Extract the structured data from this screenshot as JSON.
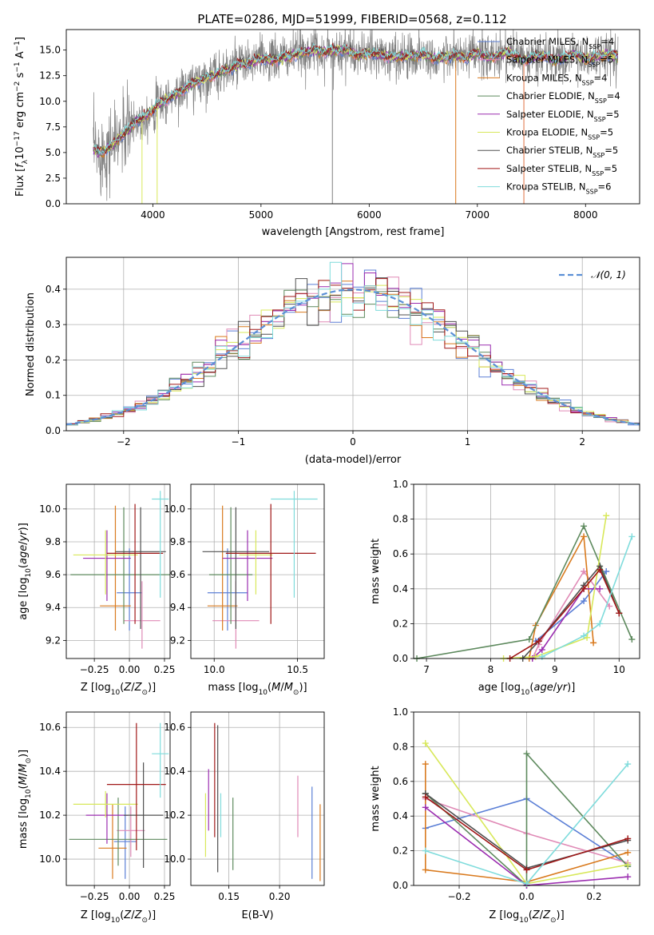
{
  "colors": {
    "chabrier_miles": "#5b7fd6",
    "salpeter_miles": "#e08ab6",
    "kroupa_miles": "#d97a1e",
    "chabrier_elodie": "#5e8a5e",
    "salpeter_elodie": "#9b2db0",
    "kroupa_elodie": "#d8e85a",
    "chabrier_stelib": "#505050",
    "salpeter_stelib": "#a01818",
    "kroupa_stelib": "#7fdcdc",
    "gauss": "#5b8fd6",
    "grid": "#b0b0b0"
  },
  "chart_data": [
    {
      "id": "spectrum",
      "type": "line",
      "title": "PLATE=0286, MJD=51999, FIBERID=0568, z=0.112",
      "xlabel": "wavelength [Angstrom, rest frame]",
      "ylabel": "Flux [f_λ 10^-17 erg cm^-2 s^-1 A^-1]",
      "xlim": [
        3200,
        8500
      ],
      "ylim": [
        0,
        17
      ],
      "xticks": [
        "4000",
        "5000",
        "6000",
        "7000",
        "8000"
      ],
      "yticks": [
        "0.0",
        "2.5",
        "5.0",
        "7.5",
        "10.0",
        "12.5",
        "15.0"
      ],
      "grid": false,
      "legend_position": "top-right",
      "legend": [
        {
          "label": "Chabrier MILES, N",
          "sub": "SSP",
          "tail": "=4",
          "key": "chabrier_miles"
        },
        {
          "label": "Salpeter MILES, N",
          "sub": "SSP",
          "tail": "=5",
          "key": "salpeter_miles"
        },
        {
          "label": "Kroupa MILES, N",
          "sub": "SSP",
          "tail": "=4",
          "key": "kroupa_miles"
        },
        {
          "label": "Chabrier ELODIE, N",
          "sub": "SSP",
          "tail": "=4",
          "key": "chabrier_elodie"
        },
        {
          "label": "Salpeter ELODIE, N",
          "sub": "SSP",
          "tail": "=5",
          "key": "salpeter_elodie"
        },
        {
          "label": "Kroupa ELODIE, N",
          "sub": "SSP",
          "tail": "=5",
          "key": "kroupa_elodie"
        },
        {
          "label": "Chabrier STELIB, N",
          "sub": "SSP",
          "tail": "=5",
          "key": "chabrier_stelib"
        },
        {
          "label": "Salpeter STELIB, N",
          "sub": "SSP",
          "tail": "=5",
          "key": "salpeter_stelib"
        },
        {
          "label": "Kroupa STELIB, N",
          "sub": "SSP",
          "tail": "=6",
          "key": "kroupa_stelib"
        }
      ],
      "model_curve": {
        "x": [
          3450,
          3500,
          3550,
          3600,
          3650,
          3700,
          3750,
          3800,
          3850,
          3900,
          3950,
          4000,
          4100,
          4200,
          4300,
          4400,
          4500,
          4600,
          4700,
          4800,
          4900,
          5000,
          5100,
          5200,
          5300,
          5400,
          5500,
          5600,
          5700,
          5800,
          5900,
          6000,
          6100,
          6200,
          6300,
          6400,
          6500,
          6600,
          6700,
          6800,
          6900,
          7000,
          7100,
          7200,
          7300,
          7400,
          7500,
          7600,
          7700,
          7800,
          7900,
          8000,
          8100,
          8200,
          8300
        ],
        "y": [
          5.3,
          5.0,
          5.2,
          5.5,
          6.0,
          6.6,
          7.0,
          7.5,
          8.2,
          8.2,
          8.8,
          9.2,
          10.0,
          10.6,
          11.3,
          11.9,
          12.3,
          12.7,
          13.1,
          13.6,
          13.7,
          14.2,
          14.0,
          14.3,
          14.5,
          14.8,
          15.0,
          14.8,
          15.0,
          15.0,
          14.4,
          14.7,
          14.5,
          14.3,
          14.4,
          14.4,
          14.6,
          14.2,
          14.3,
          14.5,
          14.2,
          14.7,
          14.2,
          14.6,
          14.8,
          14.0,
          14.2,
          14.5,
          14.0,
          14.2,
          14.6,
          14.1,
          14.3,
          14.6,
          14.4
        ]
      },
      "data_noise": 1.1,
      "spikes_x": [
        3900,
        4040,
        5660,
        6800,
        7430
      ]
    },
    {
      "id": "residuals",
      "type": "histogram",
      "xlabel": "(data-model)/error",
      "ylabel": "Normed distribution",
      "xlim": [
        -2.5,
        2.5
      ],
      "ylim": [
        0,
        0.49
      ],
      "xticks": [
        "−2",
        "−1",
        "0",
        "1",
        "2"
      ],
      "yticks": [
        "0.0",
        "0.1",
        "0.2",
        "0.3",
        "0.4"
      ],
      "grid": true,
      "legend_position": "top-right",
      "gauss_label": "𝒩(0, 1)",
      "bin_width": 0.1
    },
    {
      "id": "age_vs_z",
      "type": "errorbar",
      "xlabel": "Z [log10(Z/Z⊙)]",
      "ylabel": "age [log10(age/yr)]",
      "xlim": [
        -0.45,
        0.29
      ],
      "ylim": [
        9.09,
        10.15
      ],
      "xticks": [
        "−0.25",
        "0.00",
        "0.25"
      ],
      "yticks": [
        "9.2",
        "9.4",
        "9.6",
        "9.8",
        "10.0"
      ],
      "points": [
        {
          "key": "chabrier_miles",
          "x": 0.0,
          "xerr": 0.09,
          "y": 9.49,
          "yerr": [
            0.23,
            0.27
          ]
        },
        {
          "key": "salpeter_miles",
          "x": 0.09,
          "xerr": 0.13,
          "y": 9.32,
          "yerr": [
            0.17,
            0.24
          ]
        },
        {
          "key": "kroupa_miles",
          "x": -0.1,
          "xerr": 0.11,
          "y": 9.41,
          "yerr": [
            0.15,
            0.61
          ]
        },
        {
          "key": "chabrier_elodie",
          "x": -0.04,
          "xerr": 0.38,
          "y": 9.6,
          "yerr": [
            0.3,
            0.41
          ]
        },
        {
          "key": "salpeter_elodie",
          "x": -0.16,
          "xerr": 0.17,
          "y": 9.7,
          "yerr": [
            0.26,
            0.17
          ]
        },
        {
          "key": "kroupa_elodie",
          "x": -0.17,
          "xerr": 0.23,
          "y": 9.72,
          "yerr": [
            0.24,
            0.15
          ]
        },
        {
          "key": "chabrier_stelib",
          "x": 0.08,
          "xerr": 0.18,
          "y": 9.74,
          "yerr": [
            0.47,
            0.27
          ]
        },
        {
          "key": "salpeter_stelib",
          "x": 0.04,
          "xerr": 0.2,
          "y": 9.73,
          "yerr": [
            0.43,
            0.3
          ]
        },
        {
          "key": "kroupa_stelib",
          "x": 0.22,
          "xerr": 0.06,
          "y": 10.06,
          "yerr": [
            0.6,
            0.05
          ]
        }
      ]
    },
    {
      "id": "age_vs_mass",
      "type": "errorbar",
      "xlabel": "mass [log10(M/M⊙)]",
      "ylabel": "",
      "xlim": [
        9.86,
        10.66
      ],
      "ylim": [
        9.09,
        10.15
      ],
      "xticks": [
        "10.0",
        "10.5"
      ],
      "yticks": [
        "9.2",
        "9.4",
        "9.6",
        "9.8",
        "10.0"
      ],
      "points": [
        {
          "key": "chabrier_miles",
          "x": 10.08,
          "xerr": 0.12,
          "y": 9.49,
          "yerr": [
            0.23,
            0.27
          ]
        },
        {
          "key": "salpeter_miles",
          "x": 10.13,
          "xerr": 0.14,
          "y": 9.32,
          "yerr": [
            0.17,
            0.24
          ]
        },
        {
          "key": "kroupa_miles",
          "x": 10.05,
          "xerr": 0.09,
          "y": 9.41,
          "yerr": [
            0.15,
            0.61
          ]
        },
        {
          "key": "chabrier_elodie",
          "x": 10.1,
          "xerr": 0.13,
          "y": 9.6,
          "yerr": [
            0.3,
            0.41
          ]
        },
        {
          "key": "salpeter_elodie",
          "x": 10.2,
          "xerr": 0.15,
          "y": 9.7,
          "yerr": [
            0.26,
            0.17
          ]
        },
        {
          "key": "kroupa_elodie",
          "x": 10.25,
          "xerr": 0.1,
          "y": 9.72,
          "yerr": [
            0.24,
            0.15
          ]
        },
        {
          "key": "chabrier_stelib",
          "x": 10.13,
          "xerr": 0.2,
          "y": 9.74,
          "yerr": [
            0.47,
            0.27
          ]
        },
        {
          "key": "salpeter_stelib",
          "x": 10.34,
          "xerr": 0.27,
          "y": 9.73,
          "yerr": [
            0.43,
            0.3
          ]
        },
        {
          "key": "kroupa_stelib",
          "x": 10.48,
          "xerr": 0.14,
          "y": 10.06,
          "yerr": [
            0.6,
            0.05
          ]
        }
      ]
    },
    {
      "id": "weight_vs_age",
      "type": "line",
      "xlabel": "age [log10(age/yr)]",
      "ylabel": "mass weight",
      "xlim": [
        6.8,
        10.32
      ],
      "ylim": [
        0,
        1
      ],
      "xticks": [
        "7",
        "8",
        "9",
        "10"
      ],
      "yticks": [
        "0.0",
        "0.2",
        "0.4",
        "0.6",
        "0.8",
        "1.0"
      ],
      "grid": true,
      "series": [
        {
          "key": "chabrier_miles",
          "x": [
            8.7,
            9.45,
            9.8
          ],
          "y": [
            0.1,
            0.33,
            0.5
          ]
        },
        {
          "key": "salpeter_miles",
          "x": [
            8.65,
            8.75,
            9.45,
            9.85
          ],
          "y": [
            0.0,
            0.08,
            0.5,
            0.3
          ]
        },
        {
          "key": "kroupa_miles",
          "x": [
            8.6,
            8.7,
            9.45,
            9.6
          ],
          "y": [
            0.0,
            0.19,
            0.7,
            0.09
          ]
        },
        {
          "key": "chabrier_elodie",
          "x": [
            6.85,
            8.6,
            9.45,
            10.2
          ],
          "y": [
            0.0,
            0.11,
            0.76,
            0.11
          ]
        },
        {
          "key": "salpeter_elodie",
          "x": [
            8.65,
            8.8,
            9.45,
            9.7
          ],
          "y": [
            0.0,
            0.05,
            0.4,
            0.4
          ]
        },
        {
          "key": "kroupa_elodie",
          "x": [
            8.2,
            8.7,
            9.5,
            9.8
          ],
          "y": [
            0.0,
            0.01,
            0.12,
            0.82
          ]
        },
        {
          "key": "chabrier_stelib",
          "x": [
            8.5,
            8.75,
            9.45,
            9.7,
            10.0
          ],
          "y": [
            0.0,
            0.1,
            0.42,
            0.53,
            0.26
          ]
        },
        {
          "key": "salpeter_stelib",
          "x": [
            8.3,
            8.75,
            9.45,
            9.7,
            10.0
          ],
          "y": [
            0.0,
            0.1,
            0.4,
            0.51,
            0.26
          ]
        },
        {
          "key": "kroupa_stelib",
          "x": [
            8.8,
            9.45,
            9.7,
            10.2
          ],
          "y": [
            0.01,
            0.13,
            0.2,
            0.7
          ]
        }
      ]
    },
    {
      "id": "mass_vs_z",
      "type": "errorbar",
      "xlabel": "Z [log10(Z/Z⊙)]",
      "ylabel": "mass [log10(M/M⊙)]",
      "xlim": [
        -0.45,
        0.29
      ],
      "ylim": [
        9.88,
        10.67
      ],
      "xticks": [
        "−0.25",
        "0.00",
        "0.25"
      ],
      "yticks": [
        "10.0",
        "10.2",
        "10.4",
        "10.6"
      ],
      "points": [
        {
          "key": "chabrier_miles",
          "x": -0.03,
          "xerr": 0.08,
          "y": 10.08,
          "yerr": [
            0.17,
            0.16
          ]
        },
        {
          "key": "salpeter_miles",
          "x": 0.01,
          "xerr": 0.1,
          "y": 10.13,
          "yerr": [
            0.12,
            0.11
          ]
        },
        {
          "key": "kroupa_miles",
          "x": -0.12,
          "xerr": 0.1,
          "y": 10.05,
          "yerr": [
            0.14,
            0.2
          ]
        },
        {
          "key": "chabrier_elodie",
          "x": -0.08,
          "xerr": 0.35,
          "y": 10.09,
          "yerr": [
            0.12,
            0.19
          ]
        },
        {
          "key": "salpeter_elodie",
          "x": -0.16,
          "xerr": 0.15,
          "y": 10.2,
          "yerr": [
            0.13,
            0.1
          ]
        },
        {
          "key": "kroupa_elodie",
          "x": -0.17,
          "xerr": 0.23,
          "y": 10.25,
          "yerr": [
            0.06,
            0.06
          ]
        },
        {
          "key": "chabrier_stelib",
          "x": 0.1,
          "xerr": 0.14,
          "y": 10.2,
          "yerr": [
            0.24,
            0.24
          ]
        },
        {
          "key": "salpeter_stelib",
          "x": 0.05,
          "xerr": 0.21,
          "y": 10.34,
          "yerr": [
            0.3,
            0.28
          ]
        },
        {
          "key": "kroupa_stelib",
          "x": 0.22,
          "xerr": 0.06,
          "y": 10.48,
          "yerr": [
            0.2,
            0.14
          ]
        }
      ]
    },
    {
      "id": "mass_vs_ebv",
      "type": "errorbar",
      "xlabel": "E(B-V)",
      "ylabel": "",
      "xlim": [
        0.1125,
        0.244
      ],
      "ylim": [
        9.88,
        10.67
      ],
      "xticks": [
        "0.15",
        "0.20"
      ],
      "yticks": [
        "10.0",
        "10.2",
        "10.4",
        "10.6"
      ],
      "points": [
        {
          "key": "chabrier_miles",
          "x": 0.232,
          "xerr": 0,
          "y": 10.08,
          "yerr": [
            0.17,
            0.25
          ]
        },
        {
          "key": "salpeter_miles",
          "x": 0.218,
          "xerr": 0,
          "y": 10.2,
          "yerr": [
            0.1,
            0.18
          ]
        },
        {
          "key": "kroupa_miles",
          "x": 0.24,
          "xerr": 0,
          "y": 10.04,
          "yerr": [
            0.14,
            0.21
          ]
        },
        {
          "key": "chabrier_elodie",
          "x": 0.154,
          "xerr": 0,
          "y": 10.11,
          "yerr": [
            0.16,
            0.17
          ]
        },
        {
          "key": "salpeter_elodie",
          "x": 0.13,
          "xerr": 0,
          "y": 10.26,
          "yerr": [
            0.13,
            0.15
          ]
        },
        {
          "key": "kroupa_elodie",
          "x": 0.127,
          "xerr": 0,
          "y": 10.15,
          "yerr": [
            0.14,
            0.15
          ]
        },
        {
          "key": "chabrier_stelib",
          "x": 0.139,
          "xerr": 0,
          "y": 10.28,
          "yerr": [
            0.34,
            0.33
          ]
        },
        {
          "key": "salpeter_stelib",
          "x": 0.136,
          "xerr": 0,
          "y": 10.3,
          "yerr": [
            0.2,
            0.32
          ]
        },
        {
          "key": "kroupa_stelib",
          "x": 0.142,
          "xerr": 0,
          "y": 10.2,
          "yerr": [
            0.1,
            0.1
          ]
        }
      ]
    },
    {
      "id": "weight_vs_z",
      "type": "line",
      "xlabel": "Z [log10(Z/Z⊙)]",
      "ylabel": "mass weight",
      "xlim": [
        -0.335,
        0.335
      ],
      "ylim": [
        0,
        1
      ],
      "xticks": [
        "−0.2",
        "0.0",
        "0.2"
      ],
      "yticks": [
        "0.0",
        "0.2",
        "0.4",
        "0.6",
        "0.8",
        "1.0"
      ],
      "grid": true,
      "series": [
        {
          "key": "chabrier_miles",
          "x": [
            -0.3,
            0.0,
            0.3
          ],
          "y": [
            0.33,
            0.5,
            0.12
          ]
        },
        {
          "key": "salpeter_miles",
          "x": [
            -0.3,
            0.0,
            0.3
          ],
          "y": [
            0.5,
            0.3,
            0.13
          ]
        },
        {
          "key": "kroupa_miles",
          "x": [
            -0.3,
            -0.3,
            0.0,
            0.3
          ],
          "y": [
            0.7,
            0.09,
            0.02,
            0.19
          ]
        },
        {
          "key": "chabrier_elodie",
          "x": [
            -0.3,
            0.0,
            0.0,
            0.3
          ],
          "y": [
            0.53,
            0.0,
            0.76,
            0.11
          ]
        },
        {
          "key": "salpeter_elodie",
          "x": [
            -0.3,
            0.0,
            0.3
          ],
          "y": [
            0.45,
            0.0,
            0.05
          ]
        },
        {
          "key": "kroupa_elodie",
          "x": [
            -0.3,
            0.0,
            0.3
          ],
          "y": [
            0.82,
            0.01,
            0.12
          ]
        },
        {
          "key": "chabrier_stelib",
          "x": [
            -0.3,
            0.0,
            0.3
          ],
          "y": [
            0.53,
            0.1,
            0.26
          ]
        },
        {
          "key": "salpeter_stelib",
          "x": [
            -0.3,
            0.0,
            0.3
          ],
          "y": [
            0.51,
            0.09,
            0.27
          ]
        },
        {
          "key": "kroupa_stelib",
          "x": [
            -0.3,
            0.0,
            0.3
          ],
          "y": [
            0.2,
            0.01,
            0.7
          ]
        }
      ]
    }
  ]
}
